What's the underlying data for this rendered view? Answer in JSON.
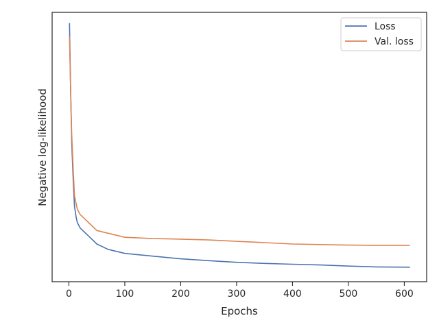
{
  "chart_data": {
    "type": "line",
    "title": "",
    "xlabel": "Epochs",
    "ylabel": "Negative log-likelihood",
    "xlim": [
      -30,
      640
    ],
    "ylim": [
      0,
      1
    ],
    "y_tick_labels_shown": false,
    "grid": false,
    "legend_position": "top-right",
    "x_ticks": [
      0,
      100,
      200,
      300,
      400,
      500,
      600
    ],
    "x": [
      1,
      3,
      5,
      8,
      10,
      13,
      15,
      20,
      30,
      40,
      50,
      70,
      100,
      150,
      200,
      250,
      300,
      350,
      400,
      450,
      500,
      550,
      610
    ],
    "series": [
      {
        "name": "Loss",
        "color": "#4c72b0",
        "values": [
          0.96,
          0.72,
          0.52,
          0.36,
          0.28,
          0.24,
          0.22,
          0.2,
          0.18,
          0.16,
          0.14,
          0.12,
          0.105,
          0.095,
          0.085,
          0.078,
          0.072,
          0.068,
          0.065,
          0.062,
          0.058,
          0.055,
          0.054
        ]
      },
      {
        "name": "Val. loss",
        "color": "#dd8452",
        "values": [
          0.91,
          0.72,
          0.55,
          0.4,
          0.32,
          0.29,
          0.27,
          0.25,
          0.23,
          0.21,
          0.19,
          0.18,
          0.165,
          0.16,
          0.158,
          0.155,
          0.15,
          0.145,
          0.14,
          0.138,
          0.136,
          0.135,
          0.135
        ]
      }
    ]
  }
}
